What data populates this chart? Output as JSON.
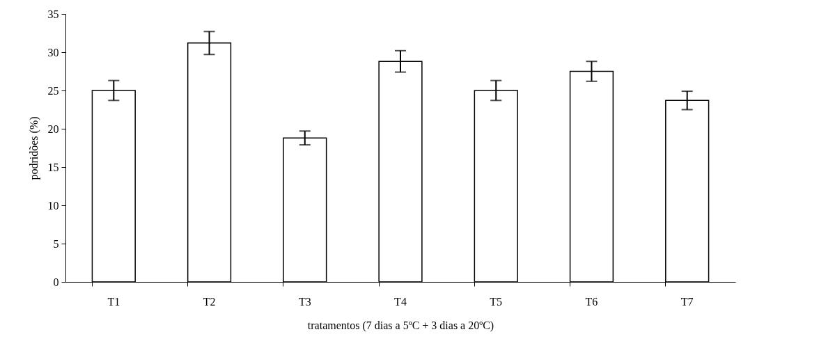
{
  "chart_data": {
    "type": "bar",
    "xlabel": "tratamentos (7 dias a 5ºC + 3 dias a 20ºC)",
    "ylabel": "podridões (%)",
    "categories": [
      "T1",
      "T2",
      "T3",
      "T4",
      "T5",
      "T6",
      "T7"
    ],
    "values": [
      25.0,
      31.2,
      18.8,
      28.8,
      25.0,
      27.5,
      23.7
    ],
    "errors": [
      1.3,
      1.5,
      0.9,
      1.4,
      1.3,
      1.3,
      1.2
    ],
    "color": "#ffffff",
    "ylim": [
      0,
      35
    ],
    "yticks": [
      0,
      5,
      10,
      15,
      20,
      25,
      30,
      35
    ],
    "grid": false
  }
}
